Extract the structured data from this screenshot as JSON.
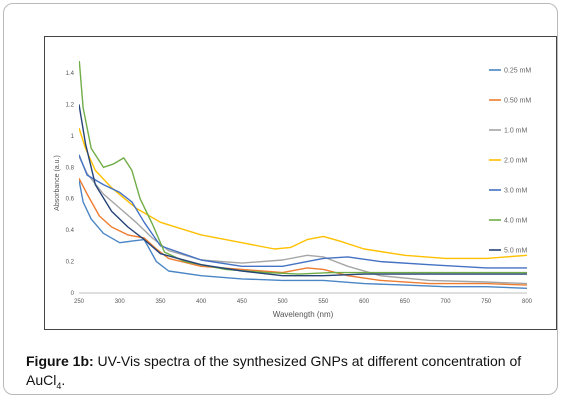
{
  "caption": {
    "label": "Figure 1b:",
    "text": " UV-Vis spectra of the synthesized GNPs at different concentration of AuCl",
    "subscript": "4",
    "period": "."
  },
  "chart_data": {
    "type": "line",
    "title": "",
    "xlabel": "Wavelength (nm)",
    "ylabel": "Absorbance (a.u.)",
    "xlim": [
      250,
      800
    ],
    "ylim": [
      0,
      1.4
    ],
    "x_ticks": [
      250,
      300,
      350,
      400,
      450,
      500,
      550,
      600,
      650,
      700,
      750,
      800
    ],
    "y_ticks": [
      0,
      0.2,
      0.4,
      0.6,
      0.8,
      1,
      1.2,
      1.4
    ],
    "grid": false,
    "legend_position": "right",
    "series": [
      {
        "name": "0.25 mM",
        "color": "#4a86c5",
        "points": [
          [
            250,
            0.72
          ],
          [
            255,
            0.58
          ],
          [
            265,
            0.47
          ],
          [
            280,
            0.38
          ],
          [
            300,
            0.32
          ],
          [
            315,
            0.33
          ],
          [
            330,
            0.34
          ],
          [
            345,
            0.2
          ],
          [
            360,
            0.14
          ],
          [
            400,
            0.11
          ],
          [
            450,
            0.09
          ],
          [
            500,
            0.08
          ],
          [
            550,
            0.08
          ],
          [
            600,
            0.06
          ],
          [
            650,
            0.05
          ],
          [
            700,
            0.04
          ],
          [
            750,
            0.04
          ],
          [
            800,
            0.03
          ]
        ]
      },
      {
        "name": "0.50 mM",
        "color": "#ed7d31",
        "points": [
          [
            250,
            0.73
          ],
          [
            260,
            0.63
          ],
          [
            275,
            0.49
          ],
          [
            290,
            0.42
          ],
          [
            310,
            0.37
          ],
          [
            330,
            0.35
          ],
          [
            345,
            0.28
          ],
          [
            360,
            0.22
          ],
          [
            400,
            0.17
          ],
          [
            450,
            0.15
          ],
          [
            500,
            0.13
          ],
          [
            530,
            0.16
          ],
          [
            550,
            0.15
          ],
          [
            580,
            0.11
          ],
          [
            620,
            0.08
          ],
          [
            680,
            0.06
          ],
          [
            750,
            0.06
          ],
          [
            800,
            0.05
          ]
        ]
      },
      {
        "name": "1.0 mM",
        "color": "#a5a5a5",
        "points": [
          [
            250,
            0.87
          ],
          [
            260,
            0.76
          ],
          [
            280,
            0.63
          ],
          [
            300,
            0.54
          ],
          [
            320,
            0.45
          ],
          [
            340,
            0.35
          ],
          [
            360,
            0.27
          ],
          [
            400,
            0.21
          ],
          [
            450,
            0.19
          ],
          [
            500,
            0.21
          ],
          [
            530,
            0.24
          ],
          [
            550,
            0.23
          ],
          [
            580,
            0.17
          ],
          [
            620,
            0.11
          ],
          [
            680,
            0.08
          ],
          [
            750,
            0.07
          ],
          [
            800,
            0.06
          ]
        ]
      },
      {
        "name": "2.0 mM",
        "color": "#ffc000",
        "points": [
          [
            250,
            1.05
          ],
          [
            258,
            0.92
          ],
          [
            270,
            0.78
          ],
          [
            290,
            0.67
          ],
          [
            320,
            0.54
          ],
          [
            350,
            0.45
          ],
          [
            400,
            0.37
          ],
          [
            450,
            0.32
          ],
          [
            490,
            0.28
          ],
          [
            510,
            0.29
          ],
          [
            530,
            0.34
          ],
          [
            550,
            0.36
          ],
          [
            570,
            0.33
          ],
          [
            600,
            0.28
          ],
          [
            650,
            0.24
          ],
          [
            700,
            0.22
          ],
          [
            750,
            0.22
          ],
          [
            800,
            0.24
          ]
        ]
      },
      {
        "name": "3.0 mM",
        "color": "#4472c4",
        "points": [
          [
            250,
            0.88
          ],
          [
            260,
            0.75
          ],
          [
            280,
            0.69
          ],
          [
            300,
            0.64
          ],
          [
            315,
            0.58
          ],
          [
            330,
            0.45
          ],
          [
            350,
            0.3
          ],
          [
            400,
            0.21
          ],
          [
            450,
            0.17
          ],
          [
            500,
            0.17
          ],
          [
            530,
            0.2
          ],
          [
            550,
            0.22
          ],
          [
            580,
            0.23
          ],
          [
            620,
            0.2
          ],
          [
            680,
            0.18
          ],
          [
            750,
            0.16
          ],
          [
            800,
            0.16
          ]
        ]
      },
      {
        "name": "4.0 mM",
        "color": "#70ad47",
        "points": [
          [
            250,
            1.5
          ],
          [
            255,
            1.18
          ],
          [
            265,
            0.92
          ],
          [
            280,
            0.8
          ],
          [
            292,
            0.82
          ],
          [
            305,
            0.86
          ],
          [
            315,
            0.78
          ],
          [
            325,
            0.6
          ],
          [
            340,
            0.44
          ],
          [
            355,
            0.26
          ],
          [
            380,
            0.2
          ],
          [
            430,
            0.15
          ],
          [
            480,
            0.13
          ],
          [
            520,
            0.12
          ],
          [
            560,
            0.13
          ],
          [
            600,
            0.13
          ],
          [
            700,
            0.13
          ],
          [
            800,
            0.13
          ]
        ]
      },
      {
        "name": "5.0 mM",
        "color": "#264478",
        "points": [
          [
            250,
            1.2
          ],
          [
            258,
            0.95
          ],
          [
            270,
            0.69
          ],
          [
            290,
            0.52
          ],
          [
            310,
            0.42
          ],
          [
            330,
            0.34
          ],
          [
            350,
            0.25
          ],
          [
            400,
            0.18
          ],
          [
            450,
            0.14
          ],
          [
            500,
            0.11
          ],
          [
            550,
            0.11
          ],
          [
            600,
            0.12
          ],
          [
            700,
            0.12
          ],
          [
            800,
            0.12
          ]
        ]
      }
    ]
  }
}
